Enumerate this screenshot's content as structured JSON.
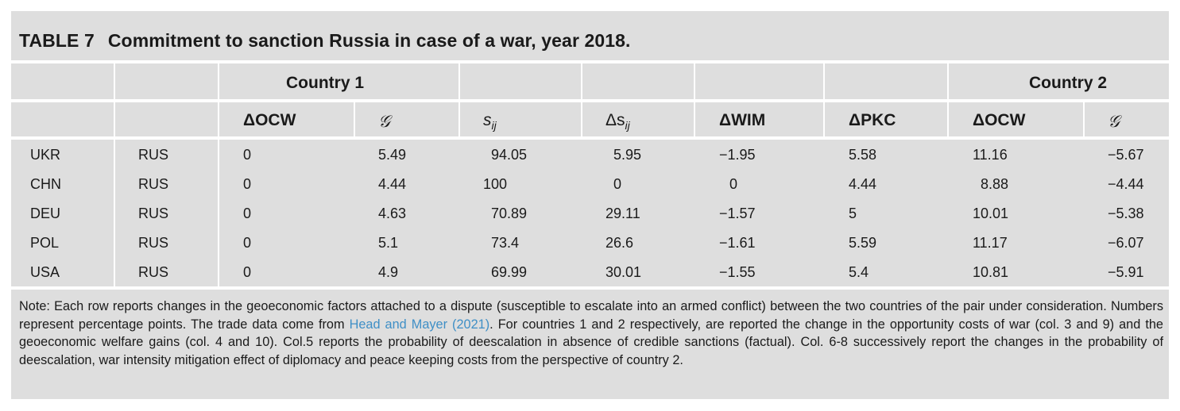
{
  "table": {
    "label": "TABLE 7",
    "title": "Commitment to sanction Russia in case of a war, year 2018.",
    "groups": {
      "country1": "Country 1",
      "country2": "Country 2"
    },
    "headers": {
      "docw1": "ΔOCW",
      "g1": "𝒢",
      "sij": "s",
      "sij_sub": "ij",
      "dsij": "Δs",
      "dsij_sub": "ij",
      "dwim": "ΔWIM",
      "dpkc": "ΔPKC",
      "docw2": "ΔOCW",
      "g2": "𝒢"
    },
    "rows": [
      [
        "UKR",
        "RUS",
        "0",
        "5.49",
        "94.05",
        "5.95",
        "−1.95",
        "5.58",
        "11.16",
        "−5.67"
      ],
      [
        "CHN",
        "RUS",
        "0",
        "4.44",
        "100",
        "0",
        "0",
        "4.44",
        "8.88",
        "−4.44"
      ],
      [
        "DEU",
        "RUS",
        "0",
        "4.63",
        "70.89",
        "29.11",
        "−1.57",
        "5",
        "10.01",
        "−5.38"
      ],
      [
        "POL",
        "RUS",
        "0",
        "5.1",
        "73.4",
        "26.6",
        "−1.61",
        "5.59",
        "11.17",
        "−6.07"
      ],
      [
        "USA",
        "RUS",
        "0",
        "4.9",
        "69.99",
        "30.01",
        "−1.55",
        "5.4",
        "10.81",
        "−5.91"
      ]
    ],
    "note": {
      "before_link": "Note: Each row reports changes in the geoeconomic factors attached to a dispute (susceptible to escalate into an armed conflict) between the two countries of the pair under consideration. Numbers represent percentage points. The trade data come from ",
      "link": "Head and Mayer (2021)",
      "after_link": ". For countries 1 and 2 respectively, are reported the change in the opportunity costs of war (col. 3 and 9) and the geoeconomic welfare gains (col. 4 and 10). Col.5 reports the probability of deescalation in absence of credible sanctions (factual). Col. 6-8 successively report the changes in the probability of deescalation, war intensity mitigation effect of diplomacy and peace keeping costs from the perspective of country 2."
    },
    "colors": {
      "panel": "#dedede",
      "rule": "#ffffff",
      "link": "#3f8fc6"
    }
  }
}
